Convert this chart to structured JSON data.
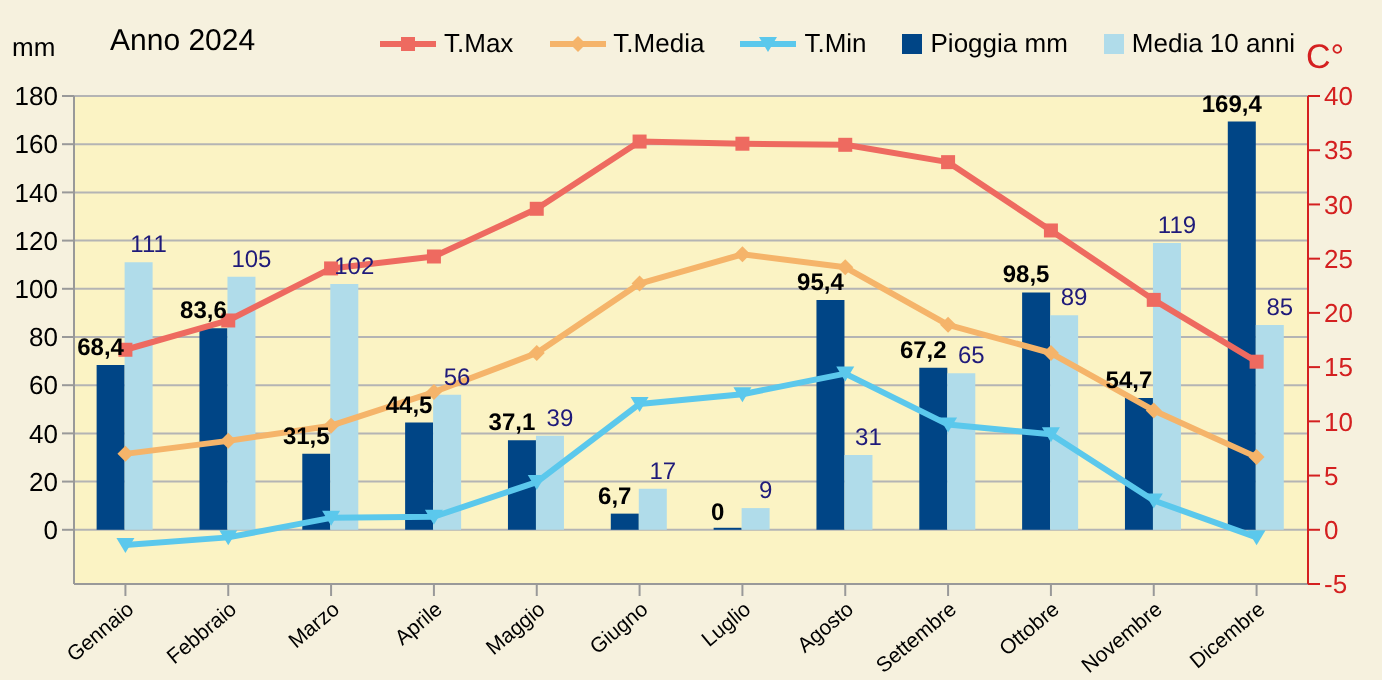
{
  "chart_data": {
    "type": "bar",
    "title": "Anno 2024",
    "ylabel": "mm",
    "y2label": "C°",
    "categories": [
      "Gennaio",
      "Febbraio",
      "Marzo",
      "Aprile",
      "Maggio",
      "Giugno",
      "Luglio",
      "Agosto",
      "Settembre",
      "Ottobre",
      "Novembre",
      "Dicembre"
    ],
    "series": [
      {
        "name": "T.Max",
        "type": "line",
        "axis": "y2",
        "marker": "square",
        "color": "#ee6a60",
        "values": [
          16.6,
          19.3,
          24.1,
          25.2,
          29.6,
          35.8,
          35.6,
          35.5,
          33.9,
          27.6,
          21.2,
          15.5
        ]
      },
      {
        "name": "T.Media",
        "type": "line",
        "axis": "y2",
        "marker": "diamond",
        "color": "#f5b46a",
        "values": [
          7.0,
          8.2,
          9.6,
          12.7,
          16.3,
          22.7,
          25.4,
          24.2,
          18.9,
          16.3,
          11.0,
          6.7
        ]
      },
      {
        "name": "T.Min",
        "type": "line",
        "axis": "y2",
        "marker": "triangle",
        "color": "#5bc8ec",
        "values": [
          -1.4,
          -0.7,
          1.1,
          1.2,
          4.4,
          11.6,
          12.5,
          14.4,
          9.7,
          8.8,
          2.7,
          -0.7
        ]
      },
      {
        "name": "Pioggia mm",
        "color": "#004586",
        "values": [
          68.4,
          83.6,
          31.5,
          44.5,
          37.1,
          6.7,
          0,
          95.4,
          67.2,
          98.5,
          54.7,
          169.4
        ],
        "value_labels": [
          "68,4",
          "83,6",
          "31,5",
          "44,5",
          "37,1",
          "6,7",
          "0",
          "95,4",
          "67,2",
          "98,5",
          "54,7",
          "169,4"
        ]
      },
      {
        "name": "Media 10 anni",
        "color": "#b0dcea",
        "values": [
          111,
          105,
          102,
          56,
          39,
          17,
          9,
          31,
          65,
          89,
          119,
          85
        ],
        "value_labels": [
          "111",
          "105",
          "102",
          "56",
          "39",
          "17",
          "9",
          "31",
          "65",
          "89",
          "119",
          "85"
        ]
      }
    ],
    "ylim": [
      -22.5,
      180
    ],
    "yticks": [
      0,
      20,
      40,
      60,
      80,
      100,
      120,
      140,
      160,
      180
    ],
    "y2lim": [
      -5,
      40
    ],
    "y2ticks": [
      -5,
      0,
      5,
      10,
      15,
      20,
      25,
      30,
      35,
      40
    ],
    "grid": "y",
    "legend": "top"
  }
}
